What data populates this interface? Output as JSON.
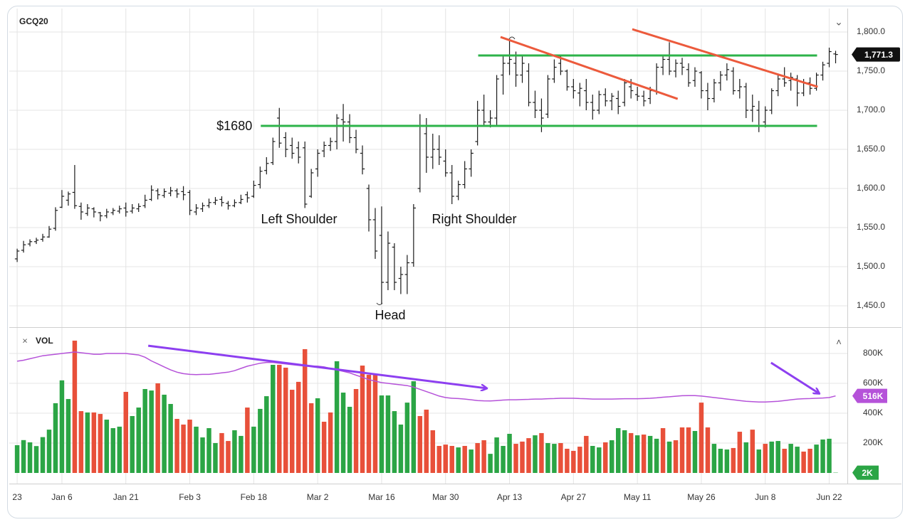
{
  "chart_data": [
    {
      "type": "ohlc",
      "title": "GCQ20",
      "color": "#1a1a1a",
      "ylim": [
        1422.7,
        1827.3
      ],
      "yticks": [
        {
          "value": 1450,
          "label": "1,450.0"
        },
        {
          "value": 1500,
          "label": "1,500.0"
        },
        {
          "value": 1550,
          "label": "1,550.0"
        },
        {
          "value": 1600,
          "label": "1,600.0"
        },
        {
          "value": 1650,
          "label": "1,650.0"
        },
        {
          "value": 1700,
          "label": "1,700.0"
        },
        {
          "value": 1750,
          "label": "1,750.0"
        },
        {
          "value": 1800,
          "label": "1,800.0"
        }
      ],
      "grid": true,
      "open": [
        1510,
        1521,
        1529,
        1532,
        1535,
        1538,
        1549,
        1576,
        1585,
        1595,
        1577,
        1568,
        1574,
        1569,
        1565,
        1569,
        1571,
        1575,
        1571,
        1574,
        1578,
        1586,
        1597,
        1591,
        1594,
        1597,
        1596,
        1595,
        1570,
        1574,
        1578,
        1582,
        1586,
        1581,
        1578,
        1582,
        1592,
        1590,
        1605,
        1623,
        1633,
        1690,
        1665,
        1655,
        1652,
        1652,
        1590,
        1625,
        1648,
        1655,
        1660,
        1688,
        1685,
        1665,
        1645,
        1600,
        1560,
        1540,
        1480,
        1525,
        1485,
        1490,
        1505,
        1600,
        1670,
        1640,
        1650,
        1635,
        1620,
        1590,
        1605,
        1625,
        1660,
        1700,
        1685,
        1690,
        1745,
        1760,
        1760,
        1745,
        1750,
        1710,
        1700,
        1695,
        1740,
        1760,
        1750,
        1730,
        1722,
        1725,
        1710,
        1700,
        1720,
        1712,
        1715,
        1710,
        1730,
        1720,
        1718,
        1715,
        1725,
        1755,
        1765,
        1750,
        1760,
        1752,
        1738,
        1748,
        1725,
        1715,
        1735,
        1745,
        1750,
        1725,
        1730,
        1700,
        1700,
        1685,
        1700,
        1725,
        1740,
        1738,
        1740,
        1722,
        1735,
        1728,
        1745,
        1760,
        1772
      ],
      "high": [
        1523,
        1533,
        1535,
        1537,
        1542,
        1552,
        1576,
        1598,
        1596,
        1630,
        1582,
        1580,
        1576,
        1570,
        1574,
        1575,
        1578,
        1582,
        1580,
        1581,
        1592,
        1604,
        1600,
        1600,
        1602,
        1600,
        1603,
        1598,
        1580,
        1582,
        1587,
        1589,
        1590,
        1584,
        1586,
        1592,
        1596,
        1610,
        1628,
        1640,
        1665,
        1703,
        1672,
        1665,
        1660,
        1660,
        1625,
        1650,
        1660,
        1665,
        1695,
        1708,
        1695,
        1675,
        1655,
        1605,
        1575,
        1577,
        1545,
        1530,
        1500,
        1515,
        1580,
        1695,
        1690,
        1670,
        1668,
        1650,
        1630,
        1610,
        1635,
        1650,
        1712,
        1720,
        1700,
        1745,
        1770,
        1790,
        1775,
        1770,
        1760,
        1725,
        1715,
        1745,
        1765,
        1770,
        1752,
        1740,
        1735,
        1740,
        1720,
        1725,
        1728,
        1722,
        1725,
        1740,
        1740,
        1730,
        1725,
        1730,
        1760,
        1770,
        1787,
        1765,
        1767,
        1760,
        1755,
        1750,
        1735,
        1740,
        1750,
        1760,
        1755,
        1740,
        1735,
        1720,
        1712,
        1705,
        1728,
        1745,
        1755,
        1748,
        1745,
        1740,
        1742,
        1748,
        1762,
        1780,
        1776
      ],
      "low": [
        1506,
        1518,
        1526,
        1529,
        1532,
        1537,
        1546,
        1575,
        1578,
        1574,
        1560,
        1565,
        1563,
        1558,
        1562,
        1566,
        1568,
        1564,
        1568,
        1570,
        1575,
        1584,
        1586,
        1588,
        1590,
        1588,
        1585,
        1566,
        1566,
        1570,
        1575,
        1579,
        1577,
        1573,
        1576,
        1580,
        1582,
        1588,
        1600,
        1618,
        1630,
        1652,
        1640,
        1638,
        1632,
        1575,
        1588,
        1615,
        1640,
        1648,
        1650,
        1660,
        1658,
        1645,
        1618,
        1545,
        1510,
        1452,
        1470,
        1470,
        1465,
        1465,
        1500,
        1595,
        1620,
        1625,
        1630,
        1615,
        1580,
        1585,
        1600,
        1615,
        1655,
        1680,
        1678,
        1680,
        1720,
        1745,
        1730,
        1735,
        1705,
        1690,
        1672,
        1690,
        1735,
        1745,
        1725,
        1715,
        1705,
        1700,
        1688,
        1695,
        1705,
        1700,
        1695,
        1705,
        1715,
        1712,
        1705,
        1708,
        1720,
        1745,
        1745,
        1742,
        1745,
        1730,
        1730,
        1715,
        1700,
        1710,
        1725,
        1738,
        1720,
        1715,
        1690,
        1685,
        1672,
        1678,
        1695,
        1718,
        1730,
        1725,
        1705,
        1718,
        1720,
        1725,
        1738,
        1755,
        1760
      ],
      "close": [
        1520,
        1528,
        1532,
        1534,
        1538,
        1548,
        1572,
        1590,
        1593,
        1578,
        1570,
        1575,
        1570,
        1565,
        1570,
        1572,
        1574,
        1570,
        1575,
        1577,
        1585,
        1598,
        1592,
        1596,
        1597,
        1593,
        1592,
        1572,
        1575,
        1578,
        1582,
        1585,
        1582,
        1578,
        1582,
        1586,
        1588,
        1604,
        1622,
        1632,
        1660,
        1658,
        1650,
        1645,
        1640,
        1580,
        1620,
        1645,
        1655,
        1660,
        1690,
        1685,
        1665,
        1650,
        1625,
        1560,
        1520,
        1480,
        1530,
        1480,
        1490,
        1505,
        1575,
        1680,
        1640,
        1650,
        1640,
        1620,
        1590,
        1605,
        1625,
        1645,
        1700,
        1685,
        1690,
        1740,
        1760,
        1765,
        1745,
        1760,
        1710,
        1700,
        1690,
        1740,
        1755,
        1750,
        1730,
        1725,
        1728,
        1710,
        1700,
        1720,
        1712,
        1718,
        1705,
        1735,
        1725,
        1718,
        1712,
        1725,
        1755,
        1765,
        1750,
        1760,
        1755,
        1735,
        1750,
        1725,
        1715,
        1735,
        1745,
        1752,
        1725,
        1730,
        1700,
        1705,
        1680,
        1700,
        1725,
        1740,
        1735,
        1742,
        1722,
        1735,
        1728,
        1745,
        1758,
        1775,
        1771.3
      ],
      "last_label": "1,771.3",
      "levels": [
        {
          "value": 1680,
          "label": "$1680",
          "x": [
            38.1,
            125.1
          ],
          "color": "#2db34a"
        },
        {
          "value": 1770,
          "x": [
            72.1,
            125.1
          ],
          "color": "#2db34a"
        }
      ],
      "trendlines": [
        {
          "x": [
            75.6,
            103.3
          ],
          "y": [
            1793.6,
            1714.5
          ],
          "color": "#ec5a3c"
        },
        {
          "x": [
            96.2,
            125.2
          ],
          "y": [
            1803.6,
            1730
          ],
          "color": "#ec5a3c"
        }
      ],
      "annotations": {
        "left_shoulder": "Left Shoulder",
        "right_shoulder": "Right Shoulder",
        "head": "Head"
      }
    },
    {
      "type": "bar",
      "title": "VOL",
      "categories": [
        "23",
        null,
        null,
        null,
        null,
        null,
        null,
        "Jan 6",
        null,
        null,
        null,
        null,
        null,
        null,
        null,
        null,
        null,
        "Jan 21",
        null,
        null,
        null,
        null,
        null,
        null,
        null,
        null,
        null,
        "Feb 3",
        null,
        null,
        null,
        null,
        null,
        null,
        null,
        null,
        null,
        "Feb 18",
        null,
        null,
        null,
        null,
        null,
        null,
        null,
        null,
        null,
        "Mar 2",
        null,
        null,
        null,
        null,
        null,
        null,
        null,
        null,
        null,
        "Mar 16",
        null,
        null,
        null,
        null,
        null,
        null,
        null,
        null,
        null,
        "Mar 30",
        null,
        null,
        null,
        null,
        null,
        null,
        null,
        null,
        null,
        "Apr 13",
        null,
        null,
        null,
        null,
        null,
        null,
        null,
        null,
        null,
        "Apr 27",
        null,
        null,
        null,
        null,
        null,
        null,
        null,
        null,
        null,
        "May 11",
        null,
        null,
        null,
        null,
        null,
        null,
        null,
        null,
        null,
        "May 26",
        null,
        null,
        null,
        null,
        null,
        null,
        null,
        null,
        null,
        "Jun 8",
        null,
        null,
        null,
        null,
        null,
        null,
        null,
        null,
        null,
        "Jun 22",
        null
      ],
      "values": [
        186000,
        220000,
        205000,
        180000,
        240000,
        290000,
        467000,
        620000,
        495000,
        886000,
        414000,
        405000,
        405000,
        395000,
        357000,
        300000,
        310000,
        543000,
        381000,
        438000,
        562000,
        552000,
        600000,
        524000,
        462000,
        362000,
        324000,
        357000,
        310000,
        238000,
        300000,
        200000,
        267000,
        214000,
        286000,
        248000,
        438000,
        310000,
        429000,
        514000,
        724000,
        724000,
        705000,
        557000,
        610000,
        829000,
        467000,
        500000,
        343000,
        405000,
        748000,
        538000,
        443000,
        562000,
        719000,
        657000,
        657000,
        519000,
        519000,
        414000,
        324000,
        471000,
        614000,
        381000,
        424000,
        286000,
        181000,
        190000,
        181000,
        171000,
        181000,
        157000,
        200000,
        219000,
        128000,
        238000,
        181000,
        262000,
        195000,
        210000,
        233000,
        252000,
        267000,
        200000,
        195000,
        200000,
        162000,
        148000,
        176000,
        248000,
        181000,
        171000,
        205000,
        219000,
        300000,
        286000,
        267000,
        252000,
        257000,
        248000,
        229000,
        300000,
        210000,
        219000,
        305000,
        305000,
        281000,
        471000,
        305000,
        195000,
        162000,
        157000,
        167000,
        276000,
        205000,
        290000,
        157000,
        195000,
        210000,
        214000,
        162000,
        195000,
        176000,
        143000,
        162000,
        190000,
        224000,
        229000,
        2000
      ],
      "colors": [
        "#2ba545",
        "#2ba545",
        "#2ba545",
        "#2ba545",
        "#2ba545",
        "#2ba545",
        "#2ba545",
        "#2ba545",
        "#2ba545",
        "#e8503a",
        "#e8503a",
        "#2ba545",
        "#e8503a",
        "#e8503a",
        "#2ba545",
        "#2ba545",
        "#2ba545",
        "#e8503a",
        "#2ba545",
        "#2ba545",
        "#2ba545",
        "#2ba545",
        "#e8503a",
        "#2ba545",
        "#2ba545",
        "#e8503a",
        "#e8503a",
        "#e8503a",
        "#2ba545",
        "#2ba545",
        "#2ba545",
        "#2ba545",
        "#e8503a",
        "#e8503a",
        "#2ba545",
        "#2ba545",
        "#e8503a",
        "#2ba545",
        "#2ba545",
        "#2ba545",
        "#2ba545",
        "#e8503a",
        "#e8503a",
        "#e8503a",
        "#e8503a",
        "#e8503a",
        "#e8503a",
        "#2ba545",
        "#e8503a",
        "#e8503a",
        "#2ba545",
        "#2ba545",
        "#2ba545",
        "#e8503a",
        "#e8503a",
        "#e8503a",
        "#e8503a",
        "#2ba545",
        "#2ba545",
        "#2ba545",
        "#2ba545",
        "#2ba545",
        "#2ba545",
        "#e8503a",
        "#e8503a",
        "#e8503a",
        "#e8503a",
        "#e8503a",
        "#e8503a",
        "#2ba545",
        "#e8503a",
        "#2ba545",
        "#e8503a",
        "#e8503a",
        "#2ba545",
        "#2ba545",
        "#2ba545",
        "#2ba545",
        "#e8503a",
        "#e8503a",
        "#e8503a",
        "#2ba545",
        "#e8503a",
        "#2ba545",
        "#2ba545",
        "#e8503a",
        "#e8503a",
        "#e8503a",
        "#e8503a",
        "#e8503a",
        "#2ba545",
        "#2ba545",
        "#e8503a",
        "#2ba545",
        "#2ba545",
        "#2ba545",
        "#e8503a",
        "#2ba545",
        "#e8503a",
        "#2ba545",
        "#2ba545",
        "#e8503a",
        "#2ba545",
        "#e8503a",
        "#e8503a",
        "#e8503a",
        "#2ba545",
        "#e8503a",
        "#e8503a",
        "#2ba545",
        "#2ba545",
        "#2ba545",
        "#e8503a",
        "#e8503a",
        "#2ba545",
        "#e8503a",
        "#2ba545",
        "#e8503a",
        "#2ba545",
        "#2ba545",
        "#e8503a",
        "#2ba545",
        "#2ba545",
        "#e8503a",
        "#e8503a",
        "#2ba545",
        "#2ba545",
        "#2ba545",
        "#2ba545"
      ],
      "last_label": "2K",
      "average": [
        748000,
        755000,
        765000,
        775000,
        785000,
        790000,
        795000,
        800000,
        805000,
        810000,
        805000,
        800000,
        795000,
        795000,
        800000,
        800000,
        800000,
        800000,
        795000,
        790000,
        775000,
        750000,
        730000,
        710000,
        690000,
        675000,
        665000,
        660000,
        658000,
        660000,
        660000,
        665000,
        670000,
        675000,
        685000,
        700000,
        715000,
        725000,
        735000,
        740000,
        740000,
        735000,
        730000,
        725000,
        720000,
        715000,
        715000,
        715000,
        710000,
        700000,
        690000,
        680000,
        670000,
        655000,
        640000,
        625000,
        615000,
        605000,
        600000,
        595000,
        590000,
        585000,
        575000,
        560000,
        545000,
        530000,
        515000,
        505000,
        500000,
        498000,
        495000,
        490000,
        485000,
        483000,
        482000,
        485000,
        488000,
        490000,
        490000,
        492000,
        493000,
        495000,
        495000,
        497000,
        498000,
        500000,
        500000,
        500000,
        498000,
        497000,
        495000,
        495000,
        495000,
        495000,
        496000,
        497000,
        497000,
        497000,
        498000,
        500000,
        503000,
        507000,
        510000,
        514000,
        517000,
        518000,
        518000,
        515000,
        510000,
        505000,
        500000,
        495000,
        490000,
        485000,
        480000,
        477000,
        475000,
        475000,
        477000,
        480000,
        485000,
        490000,
        495000,
        497000,
        498000,
        500000,
        502000,
        505000,
        516000
      ],
      "average_color": "#b552d9",
      "average_label": "516K",
      "ylim": [
        0,
        962000
      ],
      "yticks": [
        {
          "value": 200000,
          "label": "200K"
        },
        {
          "value": 400000,
          "label": "400K"
        },
        {
          "value": 600000,
          "label": "600K"
        },
        {
          "value": 800000,
          "label": "800K"
        }
      ],
      "grid": true,
      "arrows": [
        {
          "x": [
            20.5,
            73.4
          ],
          "y": [
            852000,
            567000
          ],
          "color": "#8d3ff0"
        },
        {
          "x": [
            117.9,
            125.4
          ],
          "y": [
            738000,
            533000
          ],
          "color": "#8d3ff0"
        }
      ]
    }
  ]
}
